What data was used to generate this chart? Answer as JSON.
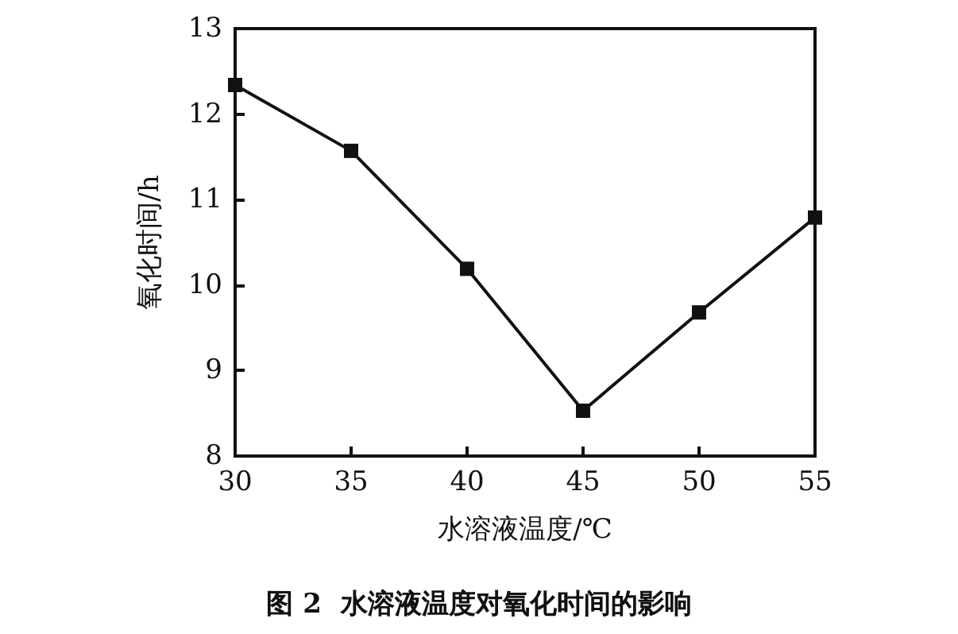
{
  "chart_data": {
    "type": "line",
    "xlabel": "水溶液温度/℃",
    "ylabel": "氧化时间/h",
    "x": [
      30,
      35,
      40,
      45,
      50,
      55
    ],
    "series": [
      {
        "color": "#111111",
        "values": [
          12.34,
          11.57,
          10.19,
          8.53,
          9.68,
          10.79
        ]
      }
    ],
    "xlim": [
      30,
      55
    ],
    "xticks": [
      30,
      35,
      40,
      45,
      50,
      55
    ],
    "ylim": [
      8,
      13
    ],
    "yticks": [
      8,
      9,
      10,
      11,
      12,
      13
    ],
    "grid": false,
    "marker": "square",
    "line_style": "solid",
    "annotations": [
      "图 2  水溶液温度对氧化时间的影响"
    ]
  }
}
